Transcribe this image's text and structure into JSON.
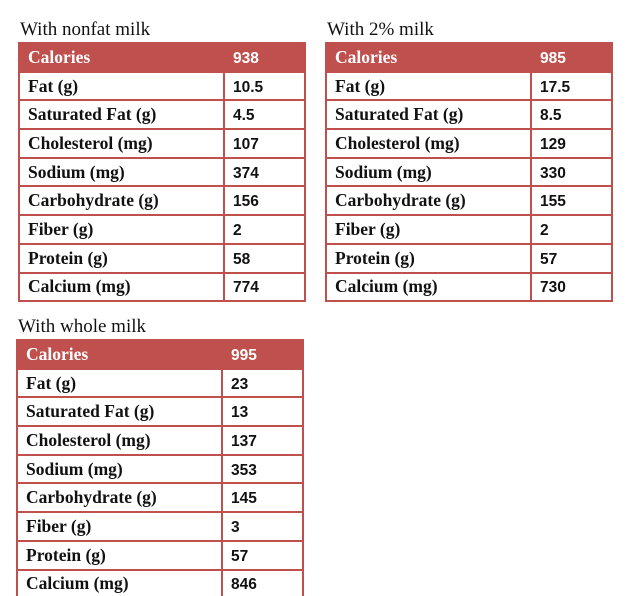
{
  "tables": [
    {
      "title": "With nonfat milk",
      "header": [
        "Calories",
        938
      ],
      "rows": [
        [
          "Fat (g)",
          10.5
        ],
        [
          "Saturated Fat (g)",
          4.5
        ],
        [
          "Cholesterol (mg)",
          107
        ],
        [
          "Sodium (mg)",
          374
        ],
        [
          "Carbohydrate (g)",
          156
        ],
        [
          "Fiber (g)",
          2
        ],
        [
          "Protein (g)",
          58
        ],
        [
          "Calcium (mg)",
          774
        ]
      ]
    },
    {
      "title": "With 2% milk",
      "header": [
        "Calories",
        985
      ],
      "rows": [
        [
          "Fat (g)",
          17.5
        ],
        [
          "Saturated Fat (g)",
          8.5
        ],
        [
          "Cholesterol (mg)",
          129
        ],
        [
          "Sodium (mg)",
          330
        ],
        [
          "Carbohydrate (g)",
          155
        ],
        [
          "Fiber (g)",
          2
        ],
        [
          "Protein (g)",
          57
        ],
        [
          "Calcium (mg)",
          730
        ]
      ]
    },
    {
      "title": "With whole milk",
      "header": [
        "Calories",
        995
      ],
      "rows": [
        [
          "Fat (g)",
          23
        ],
        [
          "Saturated Fat (g)",
          13
        ],
        [
          "Cholesterol (mg)",
          137
        ],
        [
          "Sodium (mg)",
          353
        ],
        [
          "Carbohydrate (g)",
          145
        ],
        [
          "Fiber (g)",
          3
        ],
        [
          "Protein (g)",
          57
        ],
        [
          "Calcium (mg)",
          846
        ]
      ]
    }
  ]
}
